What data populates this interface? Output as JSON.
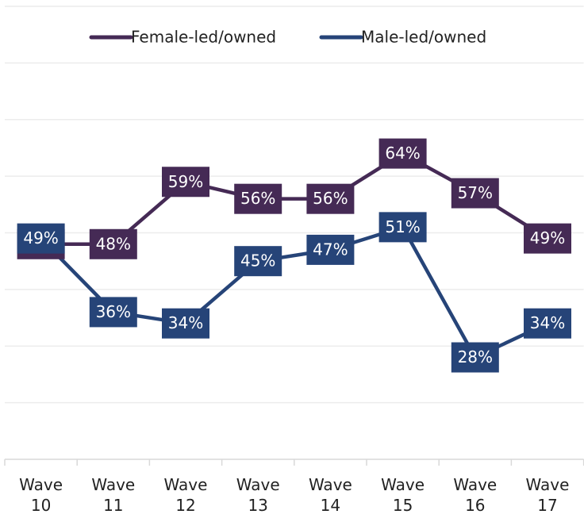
{
  "chart_data": {
    "type": "line",
    "categories": [
      "Wave 10",
      "Wave 11",
      "Wave 12",
      "Wave 13",
      "Wave 14",
      "Wave 15",
      "Wave 16",
      "Wave 17"
    ],
    "series": [
      {
        "name": "Female-led/owned",
        "color": "#452a55",
        "values": [
          48,
          48,
          59,
          56,
          56,
          64,
          57,
          49
        ],
        "value_labels": [
          "48%",
          "48%",
          "59%",
          "56%",
          "56%",
          "64%",
          "57%",
          "49%"
        ]
      },
      {
        "name": "Male-led/owned",
        "color": "#264478",
        "values": [
          49,
          36,
          34,
          45,
          47,
          51,
          28,
          34
        ],
        "value_labels": [
          "49%",
          "36%",
          "34%",
          "45%",
          "47%",
          "51%",
          "28%",
          "34%"
        ]
      }
    ],
    "ylim": [
      10,
      90
    ],
    "yticks": [
      10,
      20,
      30,
      40,
      50,
      60,
      70,
      80,
      90
    ],
    "grid": true,
    "legend": "top"
  }
}
